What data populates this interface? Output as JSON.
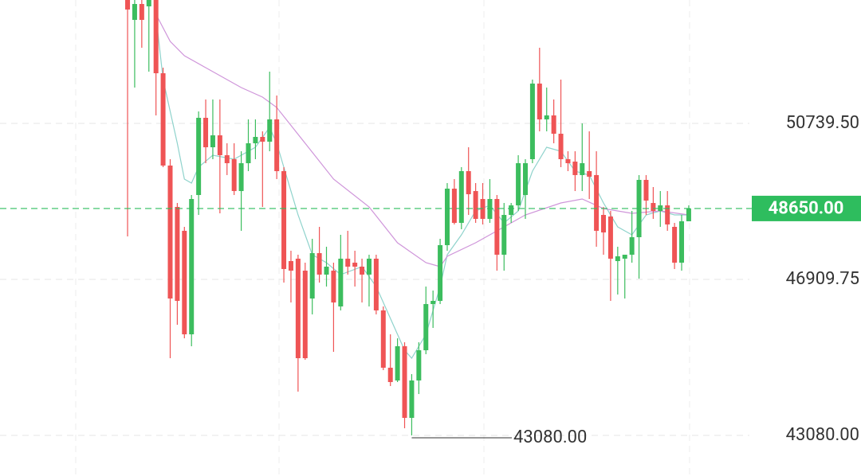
{
  "chart_data": {
    "type": "candlestick",
    "up_color": "#3cbd5e",
    "down_color": "#ef5455",
    "xlim": [
      -17.96,
      103.25
    ],
    "ylim": [
      42083,
      53768
    ],
    "yticks": [
      {
        "value": 50739.5,
        "label": "50739.50"
      },
      {
        "value": 46909.75,
        "label": "46909.75"
      },
      {
        "value": 43080,
        "label": "43080.00"
      }
    ],
    "grid": true,
    "current_price": {
      "value": 48650,
      "label": "48650.00",
      "color": "#2ebd5e"
    },
    "low_annotation": {
      "index": 40,
      "value": 43080,
      "label": "43080.00"
    },
    "open": [
      53768,
      53280,
      53670,
      53612,
      53768,
      51970,
      49704,
      48688,
      48102,
      45561,
      48981,
      50876,
      50153,
      50446,
      49958,
      49860,
      49078,
      49762,
      50251,
      50407,
      50290,
      50837,
      49567,
      47359,
      47418,
      47124,
      46440,
      47554,
      47027,
      47124,
      46245,
      47418,
      47320,
      47222,
      47027,
      47418,
      46148,
      44741,
      44428,
      45269,
      43510,
      44428,
      45170,
      46304,
      46382,
      47750,
      49137,
      48297,
      49567,
      49078,
      48883,
      48395,
      48883,
      47515,
      48492,
      48727,
      48981,
      49860,
      51716,
      50837,
      50935,
      50485,
      49860,
      49801,
      49470,
      49567,
      49470,
      48492,
      48453,
      47359,
      47418,
      47515,
      47945,
      49352,
      48785,
      48590,
      48727,
      48199,
      47320,
      48336
    ],
    "high": [
      54159,
      54159,
      53963,
      54159,
      53963,
      52107,
      49860,
      48785,
      48199,
      48981,
      51032,
      51326,
      51326,
      51326,
      50251,
      50251,
      50055,
      50837,
      50837,
      50544,
      52009,
      51423,
      49665,
      47613,
      47515,
      47320,
      47906,
      48199,
      47711,
      47320,
      48004,
      48102,
      47613,
      47418,
      47515,
      47515,
      46245,
      45561,
      45463,
      45366,
      44584,
      45366,
      46734,
      46636,
      47906,
      49274,
      49372,
      49665,
      50153,
      49274,
      49274,
      49372,
      48981,
      48785,
      48785,
      49958,
      49860,
      51814,
      52596,
      51619,
      51326,
      51814,
      50055,
      50055,
      50739,
      50544,
      50055,
      48688,
      48590,
      47711,
      47515,
      48590,
      49470,
      49470,
      49176,
      49078,
      49078,
      48297,
      48492,
      48727
    ],
    "low": [
      47965,
      51619,
      52596,
      52009,
      50935,
      49665,
      44975,
      45796,
      45463,
      45269,
      48492,
      49762,
      49860,
      48531,
      49470,
      48981,
      48102,
      49567,
      49860,
      48688,
      50055,
      49372,
      46831,
      46343,
      44154,
      44936,
      46050,
      46831,
      46734,
      45131,
      46148,
      47027,
      46734,
      46343,
      46245,
      46050,
      44682,
      44291,
      44389,
      43255,
      43080,
      44095,
      45073,
      45718,
      46304,
      47613,
      48258,
      48141,
      48492,
      48297,
      48258,
      48297,
      47124,
      47124,
      48297,
      48590,
      48395,
      49762,
      50544,
      50544,
      50251,
      49665,
      49567,
      49078,
      49078,
      48883,
      47711,
      47515,
      46382,
      46538,
      46440,
      47320,
      46929,
      48492,
      48395,
      48199,
      48102,
      47164,
      47124,
      48336
    ],
    "close": [
      53534,
      53670,
      53280,
      53866,
      51970,
      49704,
      46440,
      46382,
      45561,
      48883,
      50876,
      50153,
      50446,
      49958,
      49762,
      49078,
      49762,
      50251,
      50407,
      50290,
      50837,
      49567,
      47164,
      47124,
      44975,
      44975,
      47554,
      47027,
      47222,
      46343,
      47418,
      47222,
      47222,
      47027,
      47418,
      46148,
      44741,
      44389,
      45269,
      43510,
      44428,
      45170,
      46304,
      46382,
      47750,
      49137,
      48297,
      49567,
      49000,
      48395,
      48395,
      48883,
      47515,
      48492,
      48727,
      49762,
      49762,
      51716,
      50837,
      50935,
      50485,
      49860,
      49762,
      49470,
      49762,
      49430,
      48102,
      48062,
      47418,
      47476,
      47515,
      47945,
      49352,
      48844,
      48590,
      48727,
      48258,
      47320,
      48336,
      48650
    ],
    "lines": [
      {
        "color": "#8fd3cc",
        "x": [
          4,
          5,
          7,
          8,
          9,
          10,
          12,
          15,
          18,
          20,
          21,
          22,
          24,
          26,
          28,
          30,
          33,
          35,
          37,
          39,
          40,
          42,
          44,
          45,
          47,
          49,
          51,
          53,
          55,
          57,
          59,
          61,
          63,
          65,
          67,
          69,
          71,
          73,
          75,
          77,
          79
        ],
        "values": [
          53377,
          51814,
          50251,
          49372,
          49274,
          49665,
          49958,
          49860,
          50153,
          50642,
          50251,
          49665,
          48492,
          47515,
          47320,
          47027,
          47222,
          46734,
          45952,
          45170,
          44975,
          45561,
          46734,
          47515,
          48004,
          48590,
          48727,
          48297,
          48590,
          49567,
          50153,
          50055,
          49567,
          49470,
          48785,
          48199,
          48004,
          48492,
          48590,
          48492,
          48492
        ]
      },
      {
        "color": "#cf95da",
        "x": [
          4,
          6,
          8,
          11,
          16,
          19,
          21,
          25,
          29,
          34,
          38,
          42,
          44,
          45,
          49,
          54,
          56,
          61,
          64,
          67,
          71,
          75,
          79
        ],
        "values": [
          53416,
          52752,
          52400,
          52107,
          51619,
          51384,
          51130,
          50251,
          49372,
          48688,
          47808,
          47320,
          47222,
          47476,
          47808,
          48297,
          48492,
          48785,
          48883,
          48648,
          48531,
          48590,
          48492
        ]
      }
    ]
  }
}
